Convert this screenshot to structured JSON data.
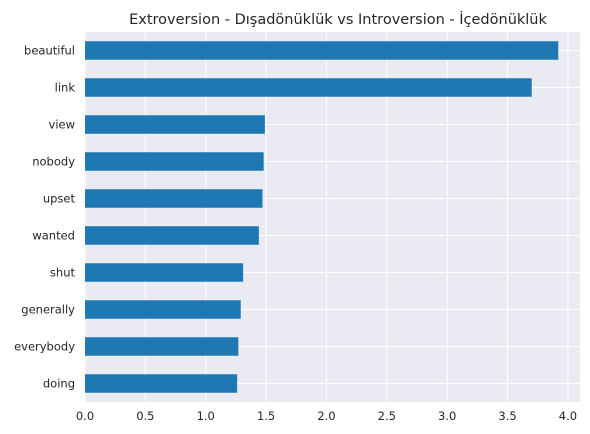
{
  "chart_data": {
    "type": "bar",
    "orientation": "horizontal",
    "title": "Extroversion - Dışadönüklük vs Introversion - İçedönüklük",
    "xlabel": "",
    "ylabel": "",
    "categories": [
      "beautiful",
      "link",
      "view",
      "nobody",
      "upset",
      "wanted",
      "shut",
      "generally",
      "everybody",
      "doing"
    ],
    "values": [
      3.92,
      3.7,
      1.49,
      1.48,
      1.47,
      1.44,
      1.31,
      1.29,
      1.27,
      1.26
    ],
    "xlim": [
      0,
      4.1
    ],
    "xticks": [
      "0.0",
      "0.5",
      "1.0",
      "1.5",
      "2.0",
      "2.5",
      "3.0",
      "3.5",
      "4.0"
    ],
    "grid": true,
    "legend": "none",
    "colors": {
      "bar": "#1f77b4",
      "background": "#eaeaf2",
      "grid": "#ffffff"
    }
  }
}
